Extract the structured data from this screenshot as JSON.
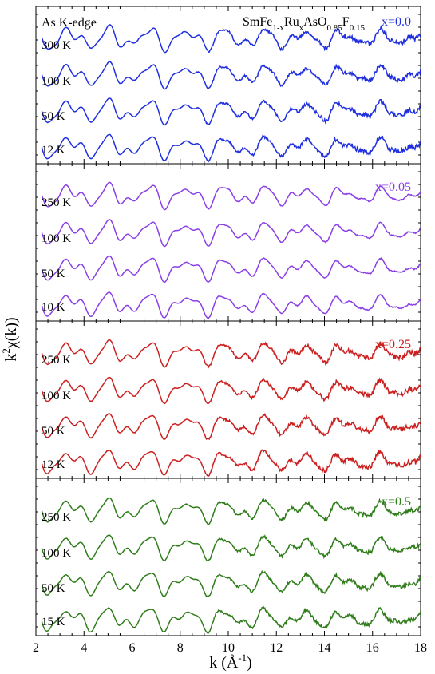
{
  "chart_data": {
    "type": "line",
    "xlabel": "k (Å⁻¹)",
    "ylabel": "k²χ(k))",
    "xlim": [
      2,
      18
    ],
    "x_ticks": [
      "2",
      "4",
      "6",
      "8",
      "10",
      "12",
      "14",
      "16",
      "18"
    ],
    "edge_label": "As K-edge",
    "compound": {
      "base": "SmFe",
      "s1": "1-x",
      "m1": "Ru",
      "s2": "x",
      "m2": "AsO",
      "s3": "0.85",
      "m3": "F",
      "s4": "0.15"
    },
    "panels": [
      {
        "composition": "x=0.0",
        "color": "#1f2fe0",
        "noise": 0.9,
        "series": [
          {
            "temp": "300 K"
          },
          {
            "temp": "100 K"
          },
          {
            "temp": "50 K"
          },
          {
            "temp": "12 K"
          }
        ]
      },
      {
        "composition": "x=0.05",
        "color": "#8a3fe6",
        "noise": 0.25,
        "series": [
          {
            "temp": "250 K"
          },
          {
            "temp": "100 K"
          },
          {
            "temp": "50 K"
          },
          {
            "temp": "10 K"
          }
        ]
      },
      {
        "composition": "x=0.25",
        "color": "#cc1f1f",
        "noise": 1.0,
        "series": [
          {
            "temp": "250 K"
          },
          {
            "temp": "100 K"
          },
          {
            "temp": "50 K"
          },
          {
            "temp": "12 K"
          }
        ]
      },
      {
        "composition": "x=0.5",
        "color": "#2f7d1a",
        "noise": 0.8,
        "series": [
          {
            "temp": "250 K"
          },
          {
            "temp": "100 K"
          },
          {
            "temp": "50 K"
          },
          {
            "temp": "15 K"
          }
        ]
      }
    ]
  }
}
